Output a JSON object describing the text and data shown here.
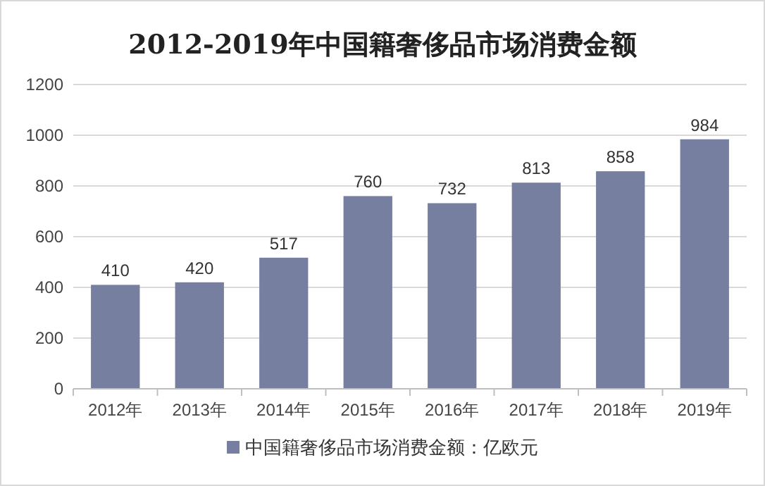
{
  "chart_data": {
    "type": "bar",
    "title": "2012-2019年中国籍奢侈品市场消费金额",
    "categories": [
      "2012年",
      "2013年",
      "2014年",
      "2015年",
      "2016年",
      "2017年",
      "2018年",
      "2019年"
    ],
    "series": [
      {
        "name": "中国籍奢侈品市场消费金额：亿欧元",
        "color": "#767f9f",
        "values": [
          410,
          420,
          517,
          760,
          732,
          813,
          858,
          984
        ]
      }
    ],
    "ylim": [
      0,
      1200
    ],
    "yticks": [
      0,
      200,
      400,
      600,
      800,
      1000,
      1200
    ],
    "grid": "y",
    "data_labels": true,
    "legend": "bottom"
  }
}
